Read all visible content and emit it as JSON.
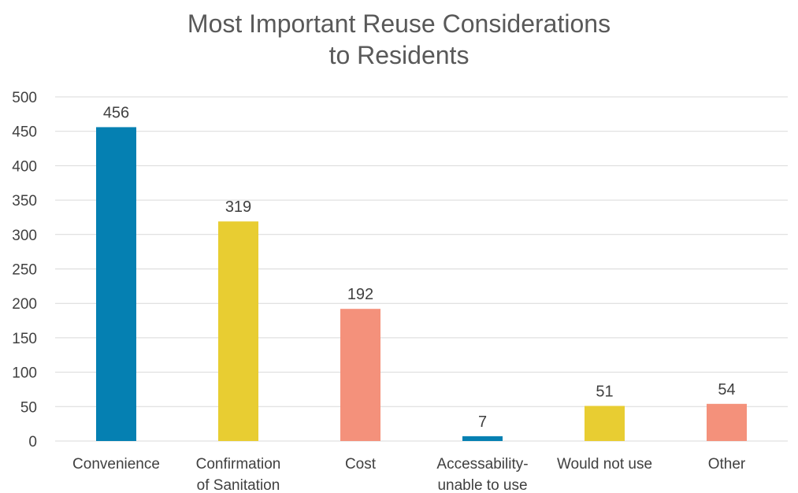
{
  "chart_data": {
    "type": "bar",
    "title_lines": [
      "Most Important Reuse Considerations",
      "to Residents"
    ],
    "categories": [
      [
        "Convenience"
      ],
      [
        "Confirmation",
        "of Sanitation"
      ],
      [
        "Cost"
      ],
      [
        "Accessability-",
        "unable to use"
      ],
      [
        "Would not use"
      ],
      [
        "Other"
      ]
    ],
    "values": [
      456,
      319,
      192,
      7,
      51,
      54
    ],
    "bar_colors": [
      "#0580b2",
      "#e8cd32",
      "#f4917b",
      "#0580b2",
      "#e8cd32",
      "#f4917b"
    ],
    "ylim": [
      0,
      500
    ],
    "yticks": [
      0,
      50,
      100,
      150,
      200,
      250,
      300,
      350,
      400,
      450,
      500
    ],
    "grid": true,
    "data_labels": true,
    "gridline_color": "#d9d9d9"
  }
}
